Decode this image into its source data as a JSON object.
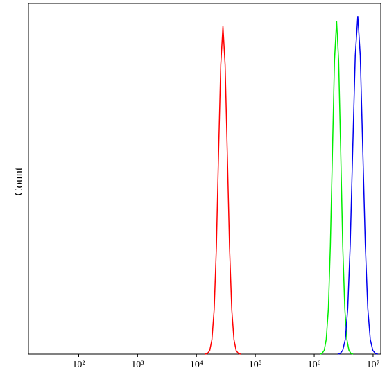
{
  "chart_data": {
    "type": "line",
    "y_label": "Count",
    "xscale": "log",
    "xlim": [
      14,
      13500000
    ],
    "ylim": [
      0,
      100
    ],
    "xticks": [
      {
        "value": 100,
        "label": "10²"
      },
      {
        "value": 1000,
        "label": "10³"
      },
      {
        "value": 10000,
        "label": "10⁴"
      },
      {
        "value": 100000,
        "label": "10⁵"
      },
      {
        "value": 1000000,
        "label": "10⁶"
      },
      {
        "value": 10000000,
        "label": "10⁷"
      }
    ],
    "series": [
      {
        "color": "#ff0000",
        "x": [
          14100,
          15400,
          16800,
          18300,
          20000,
          21800,
          23700,
          25900,
          28200,
          30700,
          33500,
          36500,
          39800,
          43400,
          47300,
          51600,
          56200
        ],
        "values": [
          0,
          0.2,
          1,
          4.1,
          12.7,
          30.4,
          56.7,
          82.5,
          93.5,
          82.5,
          56.7,
          30.4,
          12.7,
          4.1,
          1,
          0.2,
          0
        ]
      },
      {
        "color": "#00ee00",
        "x": [
          1260000,
          1360000,
          1480000,
          1600000,
          1740000,
          1880000,
          2040000,
          2210000,
          2400000,
          2600000,
          2820000,
          3050000,
          3310000,
          3590000,
          3890000,
          4210000,
          4570000
        ],
        "values": [
          0,
          0.2,
          1.1,
          4.2,
          12.9,
          30.8,
          57.6,
          83.8,
          95,
          83.8,
          57.6,
          30.8,
          12.9,
          4.2,
          1.1,
          0.2,
          0
        ]
      },
      {
        "color": "#0000ee",
        "x": [
          2510000,
          2770000,
          3050000,
          3370000,
          3710000,
          4090000,
          4510000,
          4980000,
          5500000,
          6060000,
          6680000,
          7370000,
          8130000,
          8960000,
          9880000,
          10900000,
          12000000
        ],
        "values": [
          0,
          0.2,
          1.1,
          4.2,
          13,
          31.3,
          58.5,
          85.1,
          96.4,
          85.1,
          58.5,
          31.3,
          13,
          4.2,
          1.1,
          0.2,
          0
        ]
      }
    ]
  }
}
